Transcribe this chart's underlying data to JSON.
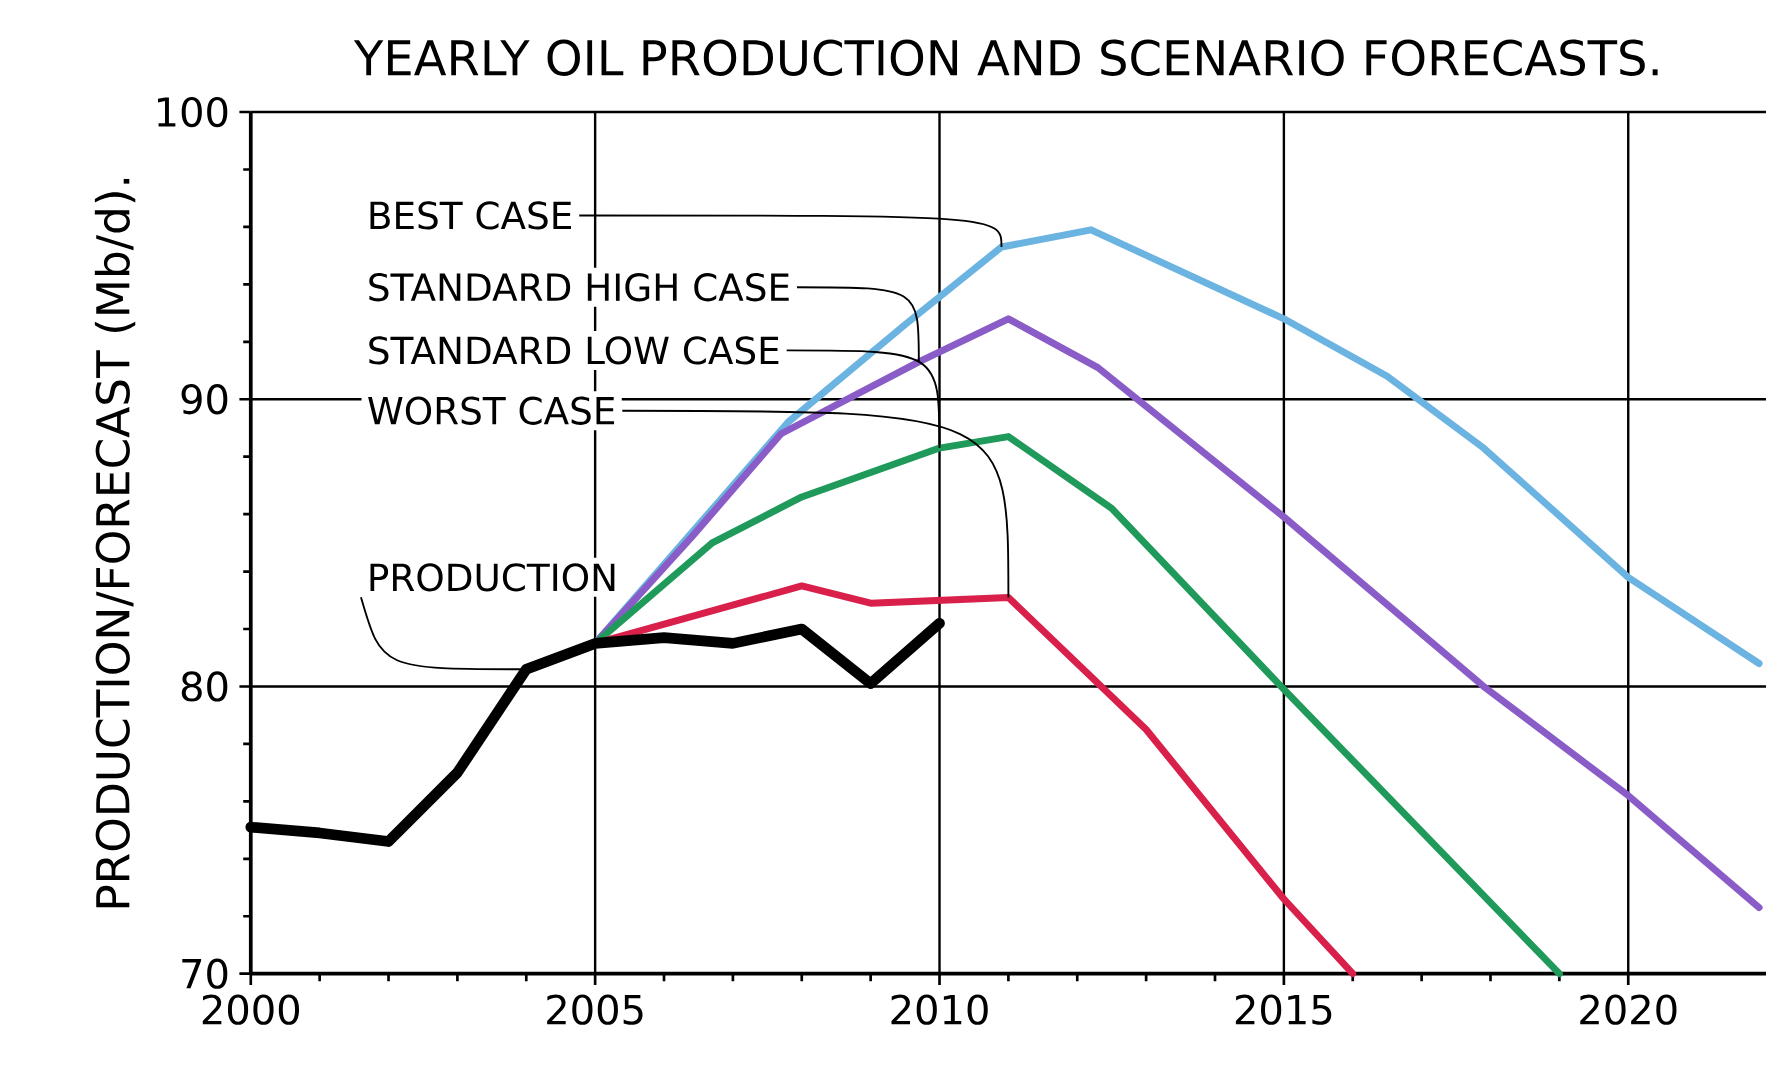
{
  "chart_data": {
    "type": "line",
    "title": "YEARLY OIL PRODUCTION AND SCENARIO FORECASTS.",
    "ylabel": "PRODUCTION/FORECAST (Mb/d).",
    "xlim": [
      2000,
      2022
    ],
    "xticks": [
      2000,
      2005,
      2010,
      2015,
      2020
    ],
    "ylim": [
      70,
      100
    ],
    "yticks": [
      70,
      80,
      90,
      100
    ],
    "grid": true,
    "legend": false,
    "marker": "none",
    "line_style": "solid",
    "series": [
      {
        "name": "BEST CASE",
        "color": "#6bb3e0",
        "x": [
          2005,
          2007.8,
          2009.5,
          2010.9,
          2012.2,
          2015,
          2016.5,
          2017.9,
          2020,
          2021.9
        ],
        "values": [
          81.5,
          89.2,
          92.6,
          95.3,
          95.9,
          92.8,
          90.8,
          88.3,
          83.8,
          80.8
        ]
      },
      {
        "name": "STANDARD HIGH CASE",
        "color": "#8a5cc7",
        "x": [
          2005,
          2006.4,
          2007.7,
          2009.7,
          2011,
          2012.3,
          2015,
          2017.9,
          2020,
          2021.9
        ],
        "values": [
          81.5,
          85.2,
          88.8,
          91.3,
          92.8,
          91.1,
          85.9,
          80.0,
          76.2,
          72.3
        ]
      },
      {
        "name": "STANDARD LOW CASE",
        "color": "#1f9a5a",
        "x": [
          2005,
          2006.7,
          2008,
          2010,
          2011,
          2012.5,
          2015,
          2019
        ],
        "values": [
          81.5,
          85.0,
          86.6,
          88.3,
          88.7,
          86.2,
          79.9,
          70.0
        ]
      },
      {
        "name": "WORST CASE",
        "color": "#d8204a",
        "x": [
          2005,
          2008,
          2009,
          2011,
          2013,
          2015,
          2016
        ],
        "values": [
          81.5,
          83.5,
          82.9,
          83.1,
          78.5,
          72.6,
          70.0
        ]
      },
      {
        "name": "PRODUCTION",
        "color": "#000000",
        "x": [
          2000,
          2001,
          2002,
          2003,
          2004,
          2005,
          2006,
          2007,
          2008,
          2009,
          2010
        ],
        "values": [
          75.1,
          74.9,
          74.6,
          77.0,
          80.6,
          81.5,
          81.7,
          81.5,
          82.0,
          80.1,
          82.2
        ]
      }
    ]
  }
}
